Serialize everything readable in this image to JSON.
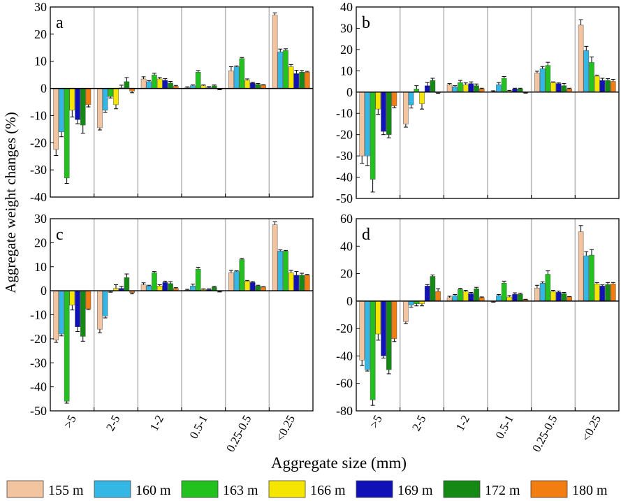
{
  "figure": {
    "ylabel": "Aggregate weight changes (%)",
    "xlabel": "Aggregate size (mm)"
  },
  "legend": {
    "placement": "bottom",
    "items": [
      {
        "label": "155 m",
        "color": "#f2c4a0"
      },
      {
        "label": "160 m",
        "color": "#35b7e5"
      },
      {
        "label": "163 m",
        "color": "#22c11e"
      },
      {
        "label": "166 m",
        "color": "#f5e600"
      },
      {
        "label": "169 m",
        "color": "#1111b8"
      },
      {
        "label": "172 m",
        "color": "#148a14"
      },
      {
        "label": "180 m",
        "color": "#f27d10"
      }
    ]
  },
  "chart_data": [
    {
      "panel": "a",
      "type": "bar",
      "categories": [
        ">5",
        "2-5",
        "1-2",
        "0.5-1",
        "0.25-0.5",
        "<0.25"
      ],
      "ylim": [
        -40,
        30
      ],
      "yticks": [
        -40,
        -30,
        -20,
        -10,
        0,
        10,
        20,
        30
      ],
      "grid": "vertical",
      "series": [
        {
          "name": "155 m",
          "values": [
            -22.5,
            -14.5,
            3.5,
            0.3,
            6.5,
            27.0
          ],
          "errors": [
            2.2,
            0.8,
            0.8,
            0.3,
            1.5,
            0.8
          ]
        },
        {
          "name": "160 m",
          "values": [
            -16.0,
            -8.0,
            2.5,
            1.0,
            8.0,
            13.5
          ],
          "errors": [
            1.8,
            0.8,
            0.4,
            0.3,
            0.3,
            1.0
          ]
        },
        {
          "name": "163 m",
          "values": [
            -33.0,
            -3.0,
            5.0,
            6.0,
            11.0,
            14.0
          ],
          "errors": [
            2.0,
            0.5,
            0.6,
            0.6,
            0.4,
            0.6
          ]
        },
        {
          "name": "166 m",
          "values": [
            -8.0,
            -6.0,
            3.5,
            1.0,
            3.0,
            8.0
          ],
          "errors": [
            2.5,
            1.5,
            0.5,
            0.3,
            0.5,
            0.8
          ]
        },
        {
          "name": "169 m",
          "values": [
            -11.5,
            0.2,
            3.0,
            0.3,
            2.0,
            5.5
          ],
          "errors": [
            1.5,
            1.0,
            0.6,
            0.4,
            0.3,
            1.2
          ]
        },
        {
          "name": "172 m",
          "values": [
            -13.5,
            2.5,
            2.0,
            1.0,
            1.5,
            6.0
          ],
          "errors": [
            3.0,
            1.5,
            0.6,
            0.3,
            0.3,
            0.6
          ]
        },
        {
          "name": "180 m",
          "values": [
            -6.0,
            -1.0,
            0.8,
            -0.3,
            1.2,
            6.0
          ],
          "errors": [
            0.8,
            0.6,
            0.3,
            0.2,
            0.2,
            0.3
          ]
        }
      ]
    },
    {
      "panel": "b",
      "type": "bar",
      "categories": [
        ">5",
        "2-5",
        "1-2",
        "0.5-1",
        "0.25-0.5",
        "<0.25"
      ],
      "ylim": [
        -50,
        40
      ],
      "yticks": [
        -50,
        -40,
        -30,
        -20,
        -10,
        0,
        10,
        20,
        30,
        40
      ],
      "grid": "vertical",
      "series": [
        {
          "name": "155 m",
          "values": [
            -30.0,
            -15.0,
            3.5,
            0.3,
            9.0,
            31.5
          ],
          "errors": [
            3.5,
            1.5,
            0.5,
            0.3,
            0.8,
            2.5
          ]
        },
        {
          "name": "160 m",
          "values": [
            -30.0,
            -6.0,
            2.5,
            3.5,
            11.0,
            19.5
          ],
          "errors": [
            4.5,
            1.5,
            0.5,
            1.0,
            1.0,
            2.0
          ]
        },
        {
          "name": "163 m",
          "values": [
            -41.0,
            1.5,
            4.5,
            6.5,
            12.5,
            14.0
          ],
          "errors": [
            6.0,
            1.5,
            1.0,
            0.8,
            1.5,
            2.5
          ]
        },
        {
          "name": "166 m",
          "values": [
            -8.0,
            -5.5,
            3.5,
            0.5,
            4.5,
            7.5
          ],
          "errors": [
            2.5,
            2.5,
            0.8,
            0.3,
            0.3,
            0.5
          ]
        },
        {
          "name": "169 m",
          "values": [
            -18.5,
            3.0,
            4.0,
            1.5,
            4.0,
            5.5
          ],
          "errors": [
            1.5,
            1.5,
            0.8,
            0.3,
            0.3,
            1.0
          ]
        },
        {
          "name": "172 m",
          "values": [
            -20.0,
            5.5,
            3.0,
            1.5,
            3.0,
            5.5
          ],
          "errors": [
            1.5,
            1.0,
            0.8,
            0.3,
            1.0,
            0.8
          ]
        },
        {
          "name": "180 m",
          "values": [
            -6.5,
            -0.3,
            1.5,
            -0.3,
            1.5,
            5.0
          ],
          "errors": [
            0.8,
            0.3,
            0.3,
            0.2,
            0.3,
            1.0
          ]
        }
      ]
    },
    {
      "panel": "c",
      "type": "bar",
      "categories": [
        ">5",
        "2-5",
        "1-2",
        "0.5-1",
        "0.25-0.5",
        "<0.25"
      ],
      "ylim": [
        -50,
        30
      ],
      "yticks": [
        -50,
        -40,
        -30,
        -20,
        -10,
        0,
        10,
        20,
        30
      ],
      "grid": "vertical",
      "series": [
        {
          "name": "155 m",
          "values": [
            -20.5,
            -16.0,
            2.5,
            0.3,
            7.5,
            27.5
          ],
          "errors": [
            1.0,
            1.5,
            0.8,
            0.3,
            1.0,
            1.2
          ]
        },
        {
          "name": "160 m",
          "values": [
            -18.0,
            -10.5,
            2.0,
            2.0,
            8.0,
            16.5
          ],
          "errors": [
            0.8,
            0.8,
            0.3,
            0.8,
            0.3,
            0.5
          ]
        },
        {
          "name": "163 m",
          "values": [
            -46.0,
            -0.3,
            7.5,
            9.0,
            13.0,
            16.5
          ],
          "errors": [
            0.8,
            0.3,
            0.5,
            0.8,
            0.5,
            0.3
          ]
        },
        {
          "name": "166 m",
          "values": [
            -6.0,
            1.0,
            2.0,
            0.5,
            4.0,
            7.5
          ],
          "errors": [
            2.0,
            1.5,
            0.5,
            0.3,
            0.3,
            1.0
          ]
        },
        {
          "name": "169 m",
          "values": [
            -15.0,
            1.0,
            3.5,
            0.5,
            3.5,
            6.5
          ],
          "errors": [
            2.0,
            0.8,
            0.5,
            0.3,
            0.3,
            1.5
          ]
        },
        {
          "name": "172 m",
          "values": [
            -19.0,
            5.5,
            3.0,
            1.5,
            2.0,
            6.5
          ],
          "errors": [
            2.0,
            1.5,
            0.8,
            0.3,
            0.3,
            0.8
          ]
        },
        {
          "name": "180 m",
          "values": [
            -7.5,
            -0.8,
            1.0,
            -0.3,
            1.5,
            6.5
          ],
          "errors": [
            0.3,
            0.5,
            0.3,
            0.2,
            0.2,
            0.3
          ]
        }
      ]
    },
    {
      "panel": "d",
      "type": "bar",
      "categories": [
        ">5",
        "2-5",
        "1-2",
        "0.5-1",
        "0.25-0.5",
        "<0.25"
      ],
      "ylim": [
        -80,
        60
      ],
      "yticks": [
        -80,
        -60,
        -40,
        -20,
        0,
        20,
        40,
        60
      ],
      "grid": "vertical",
      "series": [
        {
          "name": "155 m",
          "values": [
            -43.0,
            -15.0,
            2.5,
            -0.5,
            9.5,
            50.5
          ],
          "errors": [
            4.0,
            1.5,
            1.0,
            0.3,
            2.0,
            4.5
          ]
        },
        {
          "name": "160 m",
          "values": [
            -50.0,
            -3.0,
            4.0,
            4.0,
            13.0,
            33.0
          ],
          "errors": [
            1.0,
            1.5,
            0.8,
            0.8,
            1.0,
            3.0
          ]
        },
        {
          "name": "163 m",
          "values": [
            -72.0,
            -2.0,
            8.5,
            13.0,
            19.5,
            33.5
          ],
          "errors": [
            4.0,
            1.5,
            0.8,
            1.5,
            2.5,
            4.0
          ]
        },
        {
          "name": "166 m",
          "values": [
            -24.0,
            -2.0,
            7.0,
            3.0,
            7.0,
            12.5
          ],
          "errors": [
            4.5,
            1.5,
            0.8,
            1.0,
            0.8,
            1.0
          ]
        },
        {
          "name": "169 m",
          "values": [
            -40.0,
            11.0,
            5.5,
            5.0,
            6.5,
            11.0
          ],
          "errors": [
            1.5,
            1.0,
            0.8,
            1.0,
            0.8,
            0.8
          ]
        },
        {
          "name": "172 m",
          "values": [
            -50.0,
            18.0,
            9.0,
            5.0,
            5.5,
            12.0
          ],
          "errors": [
            3.0,
            1.0,
            1.0,
            0.8,
            0.8,
            1.5
          ]
        },
        {
          "name": "180 m",
          "values": [
            -27.5,
            7.0,
            2.5,
            1.0,
            3.0,
            12.5
          ],
          "errors": [
            2.0,
            2.0,
            0.5,
            0.3,
            0.3,
            1.0
          ]
        }
      ]
    }
  ]
}
